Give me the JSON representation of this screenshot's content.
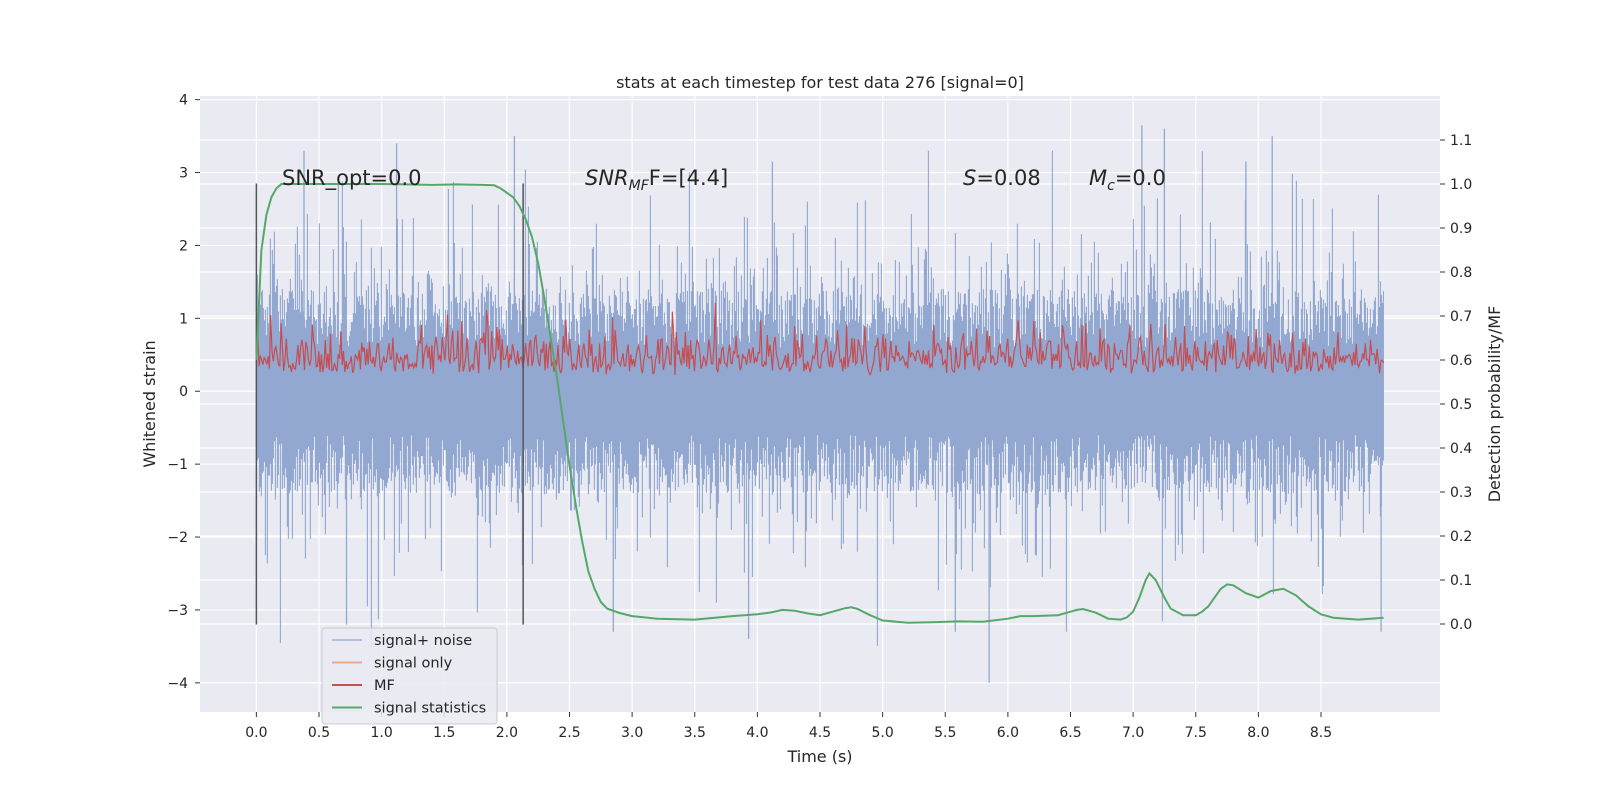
{
  "chart_data": {
    "type": "line",
    "title": "stats at each timestep for test data 276 [signal=0]",
    "xlabel": "Time (s)",
    "ylabel": "Whitened strain",
    "y2label": "Detection probability/MF",
    "xlim": [
      -0.45,
      9.45
    ],
    "ylim": [
      -4.4,
      4.05
    ],
    "y2lim": [
      -0.2,
      1.2
    ],
    "xticks": [
      "0.0",
      "0.5",
      "1.0",
      "1.5",
      "2.0",
      "2.5",
      "3.0",
      "3.5",
      "4.0",
      "4.5",
      "5.0",
      "5.5",
      "6.0",
      "6.5",
      "7.0",
      "7.5",
      "8.0",
      "8.5"
    ],
    "yticks": [
      "4",
      "3",
      "2",
      "1",
      "0",
      "−1",
      "−2",
      "−3",
      "−4"
    ],
    "y2ticks": [
      "1.1",
      "1.0",
      "0.9",
      "0.8",
      "0.7",
      "0.6",
      "0.5",
      "0.4",
      "0.3",
      "0.2",
      "0.1",
      "0.0"
    ],
    "grid": true,
    "legend_position": "lower-left",
    "annotations": {
      "snr_opt": "SNR_opt=0.0",
      "snr_mf_main": "SNR",
      "snr_mf_sub": "MF",
      "snr_mf_value": "F=[4.4]",
      "s_main": "S",
      "s_value": "=0.08",
      "mc_main": "M",
      "mc_sub": "c",
      "mc_value": "=0.0"
    },
    "vertical_lines_x": [
      0.0,
      2.13
    ],
    "series": [
      {
        "name": "signal+ noise",
        "color": "#92a8d1",
        "axis": "left",
        "x_range": [
          0.0,
          9.0
        ],
        "y_range_approx": [
          -4.0,
          3.65
        ]
      },
      {
        "name": "signal only",
        "color": "#e8a88f",
        "axis": "left",
        "values": "zero"
      },
      {
        "name": "MF",
        "color": "#c44e52",
        "axis": "right",
        "x_range": [
          0.0,
          9.0
        ],
        "y_range_approx": [
          0.53,
          0.73
        ]
      },
      {
        "name": "signal statistics",
        "color": "#55a868",
        "axis": "right",
        "x": [
          0.0,
          0.04,
          0.08,
          0.12,
          0.16,
          0.2,
          0.3,
          0.5,
          0.8,
          1.0,
          1.2,
          1.4,
          1.6,
          1.8,
          1.9,
          1.95,
          2.0,
          2.05,
          2.1,
          2.15,
          2.2,
          2.25,
          2.3,
          2.35,
          2.4,
          2.45,
          2.5,
          2.55,
          2.6,
          2.65,
          2.7,
          2.75,
          2.8,
          2.9,
          3.0,
          3.2,
          3.5,
          3.8,
          4.0,
          4.1,
          4.2,
          4.3,
          4.4,
          4.5,
          4.6,
          4.7,
          4.75,
          4.8,
          4.9,
          5.0,
          5.2,
          5.4,
          5.6,
          5.8,
          6.0,
          6.1,
          6.2,
          6.4,
          6.5,
          6.55,
          6.6,
          6.7,
          6.8,
          6.9,
          6.95,
          7.0,
          7.05,
          7.1,
          7.13,
          7.18,
          7.25,
          7.3,
          7.4,
          7.5,
          7.55,
          7.6,
          7.65,
          7.7,
          7.75,
          7.8,
          7.9,
          8.0,
          8.1,
          8.2,
          8.3,
          8.4,
          8.5,
          8.6,
          8.7,
          8.8,
          9.0
        ],
        "values": [
          0.6,
          0.85,
          0.93,
          0.97,
          0.99,
          1.0,
          1.0,
          1.0,
          1.0,
          1.0,
          0.999,
          0.998,
          0.999,
          0.998,
          0.997,
          0.99,
          0.98,
          0.97,
          0.95,
          0.92,
          0.88,
          0.82,
          0.74,
          0.65,
          0.56,
          0.46,
          0.36,
          0.27,
          0.19,
          0.12,
          0.08,
          0.05,
          0.035,
          0.025,
          0.018,
          0.012,
          0.01,
          0.018,
          0.022,
          0.026,
          0.032,
          0.03,
          0.024,
          0.02,
          0.028,
          0.036,
          0.038,
          0.034,
          0.02,
          0.008,
          0.003,
          0.004,
          0.006,
          0.005,
          0.012,
          0.018,
          0.018,
          0.02,
          0.028,
          0.032,
          0.034,
          0.026,
          0.012,
          0.01,
          0.015,
          0.028,
          0.06,
          0.1,
          0.115,
          0.1,
          0.06,
          0.035,
          0.02,
          0.02,
          0.028,
          0.04,
          0.06,
          0.08,
          0.09,
          0.088,
          0.07,
          0.06,
          0.075,
          0.08,
          0.065,
          0.04,
          0.022,
          0.014,
          0.012,
          0.01,
          0.014
        ]
      }
    ]
  }
}
